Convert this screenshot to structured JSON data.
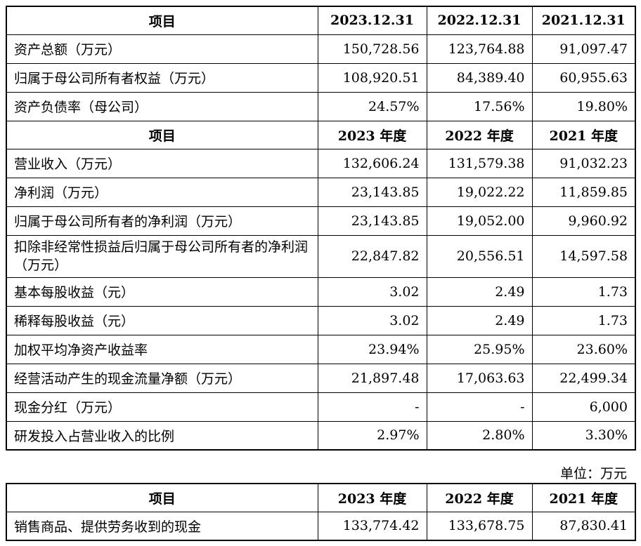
{
  "table1": {
    "balance_header": [
      "项目",
      "2023.12.31",
      "2022.12.31",
      "2021.12.31"
    ],
    "balance_rows": [
      {
        "label": "资产总额（万元）",
        "values": [
          "150,728.56",
          "123,764.88",
          "91,097.47"
        ]
      },
      {
        "label": "归属于母公司所有者权益（万元）",
        "values": [
          "108,920.51",
          "84,389.40",
          "60,955.63"
        ]
      },
      {
        "label": "资产负债率（母公司）",
        "values": [
          "24.57%",
          "17.56%",
          "19.80%"
        ]
      }
    ],
    "income_header": [
      "项目",
      "2023 年度",
      "2022 年度",
      "2021 年度"
    ],
    "income_rows": [
      {
        "label": "营业收入（万元）",
        "values": [
          "132,606.24",
          "131,579.38",
          "91,032.23"
        ]
      },
      {
        "label": "净利润（万元）",
        "values": [
          "23,143.85",
          "19,022.22",
          "11,859.85"
        ]
      },
      {
        "label": "归属于母公司所有者的净利润（万元）",
        "values": [
          "23,143.85",
          "19,052.00",
          "9,960.92"
        ]
      },
      {
        "label": "扣除非经常性损益后归属于母公司所有者的净利润（万元）",
        "values": [
          "22,847.82",
          "20,556.51",
          "14,597.58"
        ]
      },
      {
        "label": "基本每股收益（元）",
        "values": [
          "3.02",
          "2.49",
          "1.73"
        ]
      },
      {
        "label": "稀释每股收益（元）",
        "values": [
          "3.02",
          "2.49",
          "1.73"
        ]
      },
      {
        "label": "加权平均净资产收益率",
        "values": [
          "23.94%",
          "25.95%",
          "23.60%"
        ]
      },
      {
        "label": "经营活动产生的现金流量净额（万元）",
        "values": [
          "21,897.48",
          "17,063.63",
          "22,499.34"
        ]
      },
      {
        "label": "现金分红（万元）",
        "values": [
          "-",
          "-",
          "6,000"
        ]
      },
      {
        "label": "研发投入占营业收入的比例",
        "values": [
          "2.97%",
          "2.80%",
          "3.30%"
        ]
      }
    ]
  },
  "unit_note": "单位：万元",
  "table2": {
    "header": [
      "项目",
      "2023 年度",
      "2022 年度",
      "2021 年度"
    ],
    "rows": [
      {
        "label": "销售商品、提供劳务收到的现金",
        "values": [
          "133,774.42",
          "133,678.75",
          "87,830.41"
        ]
      }
    ]
  }
}
